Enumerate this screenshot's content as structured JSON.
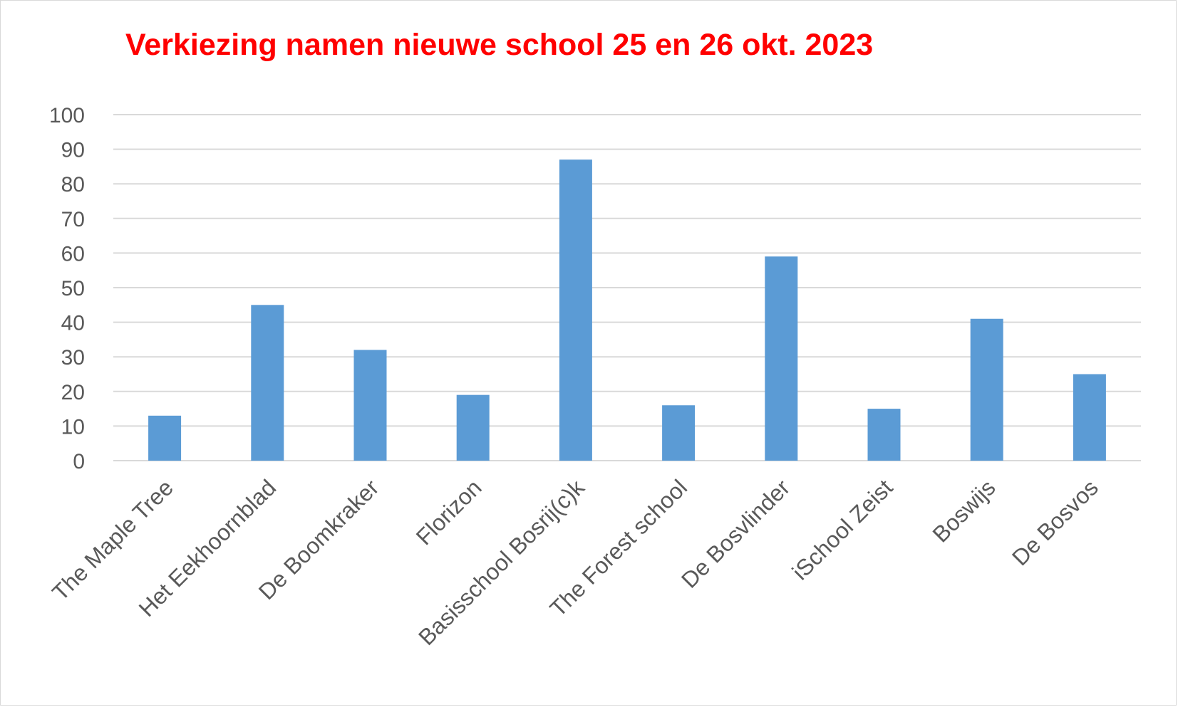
{
  "chart_data": {
    "type": "bar",
    "title": "Verkiezing namen nieuwe school 25 en 26 okt. 2023",
    "title_color": "#ff0000",
    "bar_color": "#5b9bd5",
    "categories": [
      "The Maple Tree",
      "Het Eekhoornblad",
      "De Boomkraker",
      "Florizon",
      "Basisschool Bosrij(c)k",
      "The Forest school",
      "De Bosvlinder",
      "iSchool Zeist",
      "Boswijs",
      "De Bosvos"
    ],
    "values": [
      13,
      45,
      32,
      19,
      87,
      16,
      59,
      15,
      41,
      25
    ],
    "xlabel": "",
    "ylabel": "",
    "ylim": [
      0,
      100
    ],
    "yticks": [
      0,
      10,
      20,
      30,
      40,
      50,
      60,
      70,
      80,
      90,
      100
    ],
    "grid": true,
    "legend": "none"
  }
}
